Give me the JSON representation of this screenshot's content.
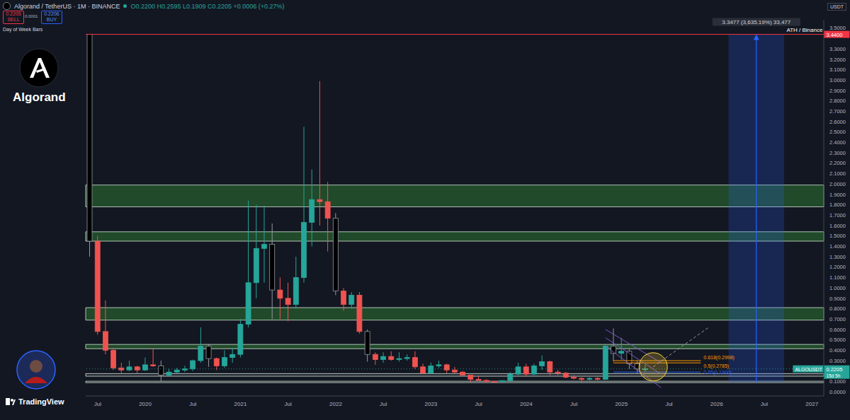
{
  "chart_data": {
    "type": "candlestick",
    "title": "Algorand / TetherUS · 1M · BINANCE",
    "subtitle": "O0.2200 H0.2595 L0.1909 C0.2205 +0.0006 (+0.27%)",
    "categories": [
      null,
      "Jul",
      null,
      null,
      null,
      null,
      null,
      "2020",
      null,
      null,
      null,
      null,
      null,
      "Jul",
      null,
      null,
      null,
      null,
      null,
      "2021",
      null,
      null,
      null,
      null,
      null,
      "Jul",
      null,
      null,
      null,
      null,
      null,
      "2022",
      null,
      null,
      null,
      null,
      null,
      "Jul",
      null,
      null,
      null,
      null,
      null,
      "2023",
      null,
      null,
      null,
      null,
      null,
      "Jul",
      null,
      null,
      null,
      null,
      null,
      "2024",
      null,
      null,
      null,
      null,
      null,
      "Jul",
      null,
      null,
      null,
      null,
      null,
      "2025",
      null,
      null,
      null,
      null,
      null,
      "Jul",
      null,
      null,
      null,
      null,
      null,
      "2026",
      null,
      null,
      null,
      null,
      null,
      "Jul",
      null,
      null,
      null,
      null,
      null,
      "2027",
      null
    ],
    "series": [
      {
        "name": "ALGOUSDT",
        "open": [
          3.44,
          1.45,
          0.58,
          0.4,
          0.23,
          0.21,
          0.24,
          0.21,
          0.26,
          0.25,
          0.16,
          0.19,
          0.21,
          0.22,
          0.3,
          0.44,
          0.32,
          0.25,
          0.33,
          0.36,
          0.65,
          1.05,
          1.38,
          1.42,
          0.98,
          0.9,
          0.84,
          1.1,
          1.63,
          1.85,
          1.83,
          1.67,
          0.97,
          0.84,
          0.93,
          0.58,
          0.36,
          0.31,
          0.34,
          0.31,
          0.32,
          0.33,
          0.24,
          0.18,
          0.25,
          0.26,
          0.21,
          0.19,
          0.16,
          0.12,
          0.11,
          0.1,
          0.098,
          0.108,
          0.17,
          0.24,
          0.17,
          0.25,
          0.29,
          0.19,
          0.18,
          0.14,
          0.13,
          0.12,
          0.13,
          0.12,
          0.44,
          0.37,
          0.39,
          0.27,
          0.22,
          null,
          null,
          null,
          null,
          null,
          null,
          null,
          null,
          null,
          null,
          null,
          null,
          null,
          null,
          null,
          null,
          null,
          null,
          null,
          null,
          null,
          null
        ],
        "high": [
          3.44,
          1.5,
          0.88,
          0.42,
          0.28,
          0.3,
          0.25,
          0.33,
          0.42,
          0.3,
          0.22,
          0.23,
          0.25,
          0.31,
          0.62,
          0.46,
          0.33,
          0.4,
          0.42,
          0.7,
          1.84,
          1.8,
          1.79,
          1.62,
          1.1,
          1.05,
          1.3,
          2.55,
          2.14,
          2.99,
          2.02,
          1.72,
          1.0,
          0.96,
          0.96,
          0.6,
          0.38,
          0.38,
          0.39,
          0.38,
          0.36,
          0.39,
          0.27,
          0.28,
          0.3,
          0.27,
          0.24,
          0.2,
          0.16,
          0.15,
          0.12,
          0.105,
          0.11,
          0.19,
          0.28,
          0.27,
          0.27,
          0.35,
          0.3,
          0.21,
          0.19,
          0.16,
          0.14,
          0.14,
          0.14,
          0.45,
          0.61,
          0.52,
          0.41,
          0.3,
          0.2595,
          null,
          null,
          null,
          null,
          null,
          null,
          null,
          null,
          null,
          null,
          null,
          null,
          null,
          null,
          null,
          null,
          null,
          null,
          null,
          null,
          null,
          null
        ],
        "low": [
          1.3,
          0.55,
          0.36,
          0.21,
          0.18,
          0.2,
          0.18,
          0.2,
          0.24,
          0.1,
          0.15,
          0.18,
          0.19,
          0.2,
          0.28,
          0.24,
          0.21,
          0.23,
          0.28,
          0.33,
          0.62,
          0.9,
          1.05,
          0.7,
          0.7,
          0.68,
          0.8,
          1.05,
          1.4,
          1.6,
          1.35,
          0.93,
          0.78,
          0.8,
          0.56,
          0.29,
          0.26,
          0.28,
          0.3,
          0.29,
          0.3,
          0.22,
          0.17,
          0.17,
          0.23,
          0.18,
          0.18,
          0.16,
          0.09,
          0.11,
          0.09,
          0.092,
          0.093,
          0.1,
          0.16,
          0.15,
          0.16,
          0.21,
          0.16,
          0.16,
          0.13,
          0.12,
          0.09,
          0.11,
          0.11,
          0.115,
          0.29,
          0.31,
          0.22,
          0.18,
          0.1909,
          null,
          null,
          null,
          null,
          null,
          null,
          null,
          null,
          null,
          null,
          null,
          null,
          null,
          null,
          null,
          null,
          null,
          null,
          null,
          null,
          null,
          null
        ],
        "close": [
          1.45,
          0.58,
          0.4,
          0.23,
          0.21,
          0.24,
          0.21,
          0.26,
          0.25,
          0.16,
          0.19,
          0.21,
          0.22,
          0.3,
          0.44,
          0.32,
          0.25,
          0.33,
          0.36,
          0.65,
          1.05,
          1.38,
          1.42,
          0.98,
          0.9,
          0.84,
          1.1,
          1.63,
          1.85,
          1.83,
          1.67,
          0.97,
          0.84,
          0.93,
          0.58,
          0.36,
          0.31,
          0.34,
          0.31,
          0.32,
          0.33,
          0.24,
          0.18,
          0.25,
          0.26,
          0.21,
          0.19,
          0.16,
          0.12,
          0.11,
          0.1,
          0.098,
          0.108,
          0.17,
          0.24,
          0.17,
          0.25,
          0.29,
          0.19,
          0.18,
          0.14,
          0.13,
          0.12,
          0.13,
          0.12,
          0.44,
          0.37,
          0.39,
          0.27,
          0.2199,
          0.2205,
          null,
          null,
          null,
          null,
          null,
          null,
          null,
          null,
          null,
          null,
          null,
          null,
          null,
          null,
          null,
          null,
          null,
          null,
          null,
          null,
          null,
          null
        ],
        "colors": [
          "#000000",
          "#ef5350",
          "#ef5350",
          "#ef5350",
          "#ef5350",
          "#26a69a",
          "#ef5350",
          "#26a69a",
          "#ef5350",
          "#000000",
          "#26a69a",
          "#26a69a",
          "#26a69a",
          "#26a69a",
          "#26a69a",
          "#000000",
          "#ef5350",
          "#26a69a",
          "#26a69a",
          "#26a69a",
          "#26a69a",
          "#26a69a",
          "#26a69a",
          "#000000",
          "#ef5350",
          "#ef5350",
          "#26a69a",
          "#26a69a",
          "#26a69a",
          "#ef5350",
          "#ef5350",
          "#000000",
          "#ef5350",
          "#26a69a",
          "#ef5350",
          "#000000",
          "#ef5350",
          "#26a69a",
          "#ef5350",
          "#26a69a",
          "#26a69a",
          "#ef5350",
          "#ef5350",
          "#26a69a",
          "#26a69a",
          "#ef5350",
          "#ef5350",
          "#ef5350",
          "#ef5350",
          "#ef5350",
          "#ef5350",
          "#ef5350",
          "#26a69a",
          "#26a69a",
          "#26a69a",
          "#ef5350",
          "#26a69a",
          "#26a69a",
          "#ef5350",
          "#ef5350",
          "#ef5350",
          "#ef5350",
          "#ef5350",
          "#26a69a",
          "#ef5350",
          "#26a69a",
          "#000000",
          "#26a69a",
          "#000000",
          "#000000",
          "#26a69a",
          null,
          null,
          null,
          null,
          null,
          null,
          null,
          null,
          null,
          null,
          null,
          null,
          null,
          null,
          null,
          null,
          null,
          null,
          null,
          null,
          null,
          null
        ]
      }
    ],
    "ylim": [
      -0.04,
      3.58
    ],
    "yticks": [
      {
        "value": 0,
        "label": "0.0000"
      },
      {
        "value": 0.1,
        "label": "0.1000"
      },
      {
        "value": 0.3,
        "label": "0.3000"
      },
      {
        "value": 0.4,
        "label": "0.4000"
      },
      {
        "value": 0.5,
        "label": "0.5000"
      },
      {
        "value": 0.6,
        "label": "0.6000"
      },
      {
        "value": 0.7,
        "label": "0.7000"
      },
      {
        "value": 0.8,
        "label": "0.8000"
      },
      {
        "value": 0.9,
        "label": "0.9000"
      },
      {
        "value": 1,
        "label": "1.0000"
      },
      {
        "value": 1.1,
        "label": "1.1000"
      },
      {
        "value": 1.2,
        "label": "1.2000"
      },
      {
        "value": 1.3,
        "label": "1.3000"
      },
      {
        "value": 1.4,
        "label": "1.4000"
      },
      {
        "value": 1.5,
        "label": "1.5000"
      },
      {
        "value": 1.6,
        "label": "1.6000"
      },
      {
        "value": 1.7,
        "label": "1.7000"
      },
      {
        "value": 1.8,
        "label": "1.8000"
      },
      {
        "value": 1.9,
        "label": "1.9000"
      },
      {
        "value": 2,
        "label": "2.0000"
      },
      {
        "value": 2.1,
        "label": "2.1000"
      },
      {
        "value": 2.2,
        "label": "2.2000"
      },
      {
        "value": 2.3,
        "label": "2.3000"
      },
      {
        "value": 2.4,
        "label": "2.4000"
      },
      {
        "value": 2.5,
        "label": "2.5000"
      },
      {
        "value": 2.6,
        "label": "2.6000"
      },
      {
        "value": 2.7,
        "label": "2.7000"
      },
      {
        "value": 2.8,
        "label": "2.8000"
      },
      {
        "value": 2.9,
        "label": "2.9000"
      },
      {
        "value": 3,
        "label": "3.0000"
      },
      {
        "value": 3.1,
        "label": "3.1000"
      },
      {
        "value": 3.2,
        "label": "3.2000"
      },
      {
        "value": 3.3,
        "label": "3.3000"
      },
      {
        "value": 3.5,
        "label": "3.5000"
      }
    ],
    "grid": false,
    "zones": [
      {
        "low": 1.78,
        "high": 1.99,
        "color": "#2e7d32"
      },
      {
        "low": 1.45,
        "high": 1.54,
        "color": "#2e7d32"
      },
      {
        "low": 0.69,
        "high": 0.81,
        "color": "#2e7d32"
      },
      {
        "low": 0.415,
        "high": 0.456,
        "color": "#2e7d32"
      },
      {
        "low": 0.15,
        "high": 0.175,
        "color": "#363a45"
      },
      {
        "low": 0.088,
        "high": 0.102,
        "color": "#363a45"
      }
    ],
    "ath_line": {
      "value": 3.44,
      "label": "ATH / Binance",
      "value_label": "3.4400",
      "color": "#f23645"
    },
    "price_line": {
      "value": 0.2205,
      "label": "ALGOUSDT",
      "value_label": "0.2205",
      "countdown": "15d 5h",
      "color": "#26a69a"
    },
    "measure": {
      "x": [
        81,
        87
      ],
      "from": 0.0921,
      "to": 3.4398,
      "label": "3.3477 (3,635.19%) 33,477",
      "color": "#2962ff"
    },
    "fib_levels": {
      "x": [
        66,
        77
      ],
      "levels": [
        {
          "value": 0.2998,
          "label": "0.618(0.2998)",
          "color": "#ff9800"
        },
        {
          "value": 0.2785,
          "label": "0.5(0.2785)",
          "color": "#ff9800"
        },
        {
          "value": 0.19,
          "label": "0.65(0.1900)",
          "color": "#2962ff"
        }
      ]
    },
    "trend_lines": [
      {
        "x": [
          65,
          72
        ],
        "y": [
          0.6,
          0.28
        ],
        "color": "#7e57c2",
        "line_style": "solid"
      },
      {
        "x": [
          65,
          72
        ],
        "y": [
          0.52,
          0.17
        ],
        "color": "#7e57c2",
        "line_style": "solid"
      },
      {
        "x": [
          65,
          72
        ],
        "y": [
          0.44,
          0.04
        ],
        "color": "#7e57c2",
        "line_style": "solid"
      },
      {
        "x": [
          71,
          78
        ],
        "y": [
          0.24,
          0.62
        ],
        "color": "#9598a1",
        "line_style": "dashed"
      }
    ],
    "highlight": {
      "x": 71,
      "y": 0.24,
      "color": "#fdd835"
    }
  },
  "page": {
    "sell_price": "0.2205",
    "sell": "SELL",
    "spread": "0.0001",
    "buy_price": "0.2206",
    "buy": "BUY",
    "indicator": "Day of Week Bars",
    "logo": "Algorand",
    "currency": "USDT",
    "watermark": "TradingView"
  }
}
